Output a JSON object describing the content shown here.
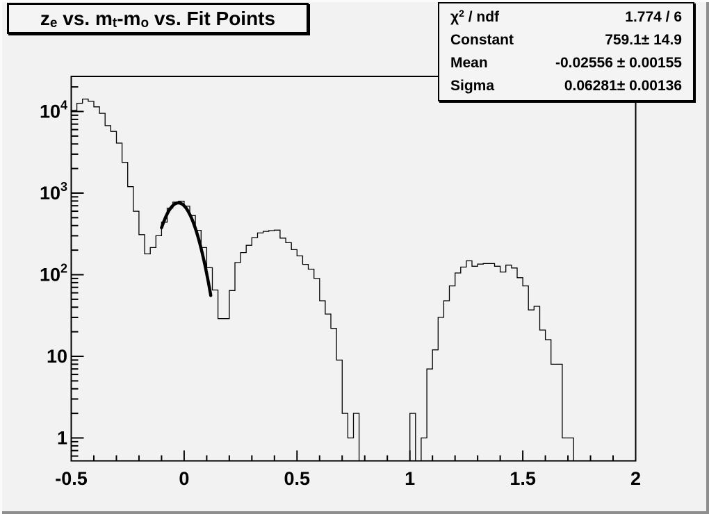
{
  "title": {
    "t1": "z",
    "s1": "e",
    "t2": " vs. m",
    "s2": "t",
    "t3": "-m",
    "s3": "o",
    "t4": " vs. Fit Points"
  },
  "stats_box": {
    "chi_label_main": "χ",
    "chi_label_sup": "2",
    "chi_label_tail": " / ndf",
    "chi_value": "1.774 / 6",
    "rows": [
      {
        "label": "Constant",
        "value": "759.1± 14.9"
      },
      {
        "label": "Mean",
        "value": "-0.02556 ± 0.00155"
      },
      {
        "label": "Sigma",
        "value": "0.06281± 0.00136"
      }
    ]
  },
  "colors": {
    "canvas_bg": "#f2f2f2",
    "box_bg": "#f4f4f4",
    "line": "#000000",
    "bevel_light": "#fbfbfb",
    "bevel_dark": "#8e8e8e"
  },
  "chart_data": {
    "type": "histogram",
    "title": "z_e vs. m_t-m_o vs. Fit Points",
    "x_range": [
      -0.5,
      2.0
    ],
    "bin_width": 0.025,
    "y_scale": "log",
    "y_range_display": [
      0.52,
      27000
    ],
    "grid": false,
    "x_axis": {
      "major_tick_step": 0.5,
      "minor_tick_step": 0.1,
      "labels": [
        {
          "v": -0.5,
          "text": "-0.5"
        },
        {
          "v": 0,
          "text": "0"
        },
        {
          "v": 0.5,
          "text": "0.5"
        },
        {
          "v": 1,
          "text": "1"
        },
        {
          "v": 1.5,
          "text": "1.5"
        },
        {
          "v": 2,
          "text": "2"
        }
      ]
    },
    "y_axis": {
      "labels": [
        {
          "v": 1,
          "base": "1",
          "exp": ""
        },
        {
          "v": 10,
          "base": "10",
          "exp": ""
        },
        {
          "v": 100,
          "base": "10",
          "exp": "2"
        },
        {
          "v": 1000,
          "base": "10",
          "exp": "3"
        },
        {
          "v": 10000,
          "base": "10",
          "exp": "4"
        }
      ]
    },
    "values": [
      10300,
      12600,
      14200,
      13300,
      11400,
      9500,
      6700,
      5700,
      4100,
      2380,
      1200,
      600,
      310,
      180,
      215,
      300,
      440,
      655,
      775,
      795,
      690,
      530,
      350,
      215,
      122,
      65,
      29,
      29,
      64,
      141,
      187,
      229,
      285,
      325,
      340,
      347,
      352,
      281,
      247,
      203,
      170,
      134,
      117,
      90,
      48,
      33,
      22,
      9,
      2,
      1,
      2,
      0,
      0,
      0,
      0,
      0,
      0,
      0,
      0,
      0,
      2,
      0,
      1,
      7,
      12,
      30,
      48,
      73,
      105,
      124,
      148,
      127,
      135,
      137,
      137,
      127,
      108,
      131,
      121,
      92,
      73,
      37,
      41,
      21,
      16,
      8,
      8,
      1,
      1,
      0,
      0,
      0,
      0,
      0,
      0,
      0,
      0,
      0,
      0,
      0
    ],
    "fit": {
      "shape": "gaussian",
      "constant": 759.1,
      "mean": -0.02556,
      "sigma": 0.06281,
      "draw_range": [
        -0.1,
        0.118
      ],
      "line_width": 4.5
    }
  }
}
